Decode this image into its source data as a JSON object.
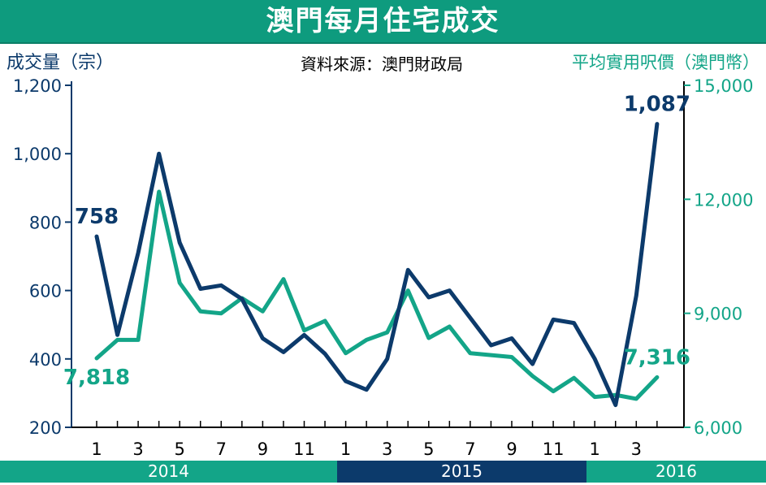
{
  "title": "澳門每月住宅成交",
  "source": "資料來源：澳門財政局",
  "colors": {
    "navy": "#0c3a6b",
    "green": "#13a588",
    "title_bg": "#0e9b7e",
    "year_2014_bg": "#13a588",
    "year_2015_bg": "#0c3a6b",
    "year_2016_bg": "#13a588"
  },
  "chart_data": {
    "type": "line",
    "left_axis_label": "成交量（宗）",
    "right_axis_label": "平均實用呎價（澳門幣）",
    "left_ylim": [
      200,
      1200
    ],
    "left_ticks": [
      "200",
      "400",
      "600",
      "800",
      "1,000",
      "1,200"
    ],
    "left_tick_values": [
      200,
      400,
      600,
      800,
      1000,
      1200
    ],
    "right_ylim": [
      6000,
      15000
    ],
    "right_ticks": [
      "6,000",
      "9,000",
      "12,000",
      "15,000"
    ],
    "right_tick_values": [
      6000,
      9000,
      12000,
      15000
    ],
    "x_tick_labels": [
      "1",
      "",
      "3",
      "",
      "5",
      "",
      "7",
      "",
      "9",
      "",
      "11",
      "",
      "1",
      "",
      "3",
      "",
      "5",
      "",
      "7",
      "",
      "9",
      "",
      "11",
      "",
      "1",
      "",
      "3",
      ""
    ],
    "years": [
      {
        "label": "2014",
        "months": 12
      },
      {
        "label": "2015",
        "months": 12
      },
      {
        "label": "2016",
        "months": 4
      }
    ],
    "series": [
      {
        "name": "成交量（宗）",
        "axis": "left",
        "color": "#0c3a6b",
        "values": [
          758,
          470,
          710,
          1000,
          740,
          605,
          615,
          575,
          460,
          420,
          470,
          415,
          335,
          310,
          400,
          660,
          580,
          600,
          520,
          440,
          460,
          385,
          515,
          505,
          400,
          265,
          585,
          1087
        ]
      },
      {
        "name": "平均實用呎價（澳門幣）",
        "axis": "right",
        "color": "#13a588",
        "values": [
          7818,
          8300,
          8300,
          12200,
          9800,
          9050,
          9000,
          9400,
          9050,
          9900,
          8550,
          8800,
          7950,
          8300,
          8500,
          9600,
          8350,
          8650,
          7950,
          7900,
          7850,
          7350,
          6950,
          7300,
          6800,
          6850,
          6750,
          7316
        ]
      }
    ],
    "annotations": [
      {
        "text": "758",
        "series": 0,
        "point": 0
      },
      {
        "text": "1,087",
        "series": 0,
        "point": 27
      },
      {
        "text": "7,818",
        "series": 1,
        "point": 0
      },
      {
        "text": "7,316",
        "series": 1,
        "point": 27
      }
    ]
  }
}
